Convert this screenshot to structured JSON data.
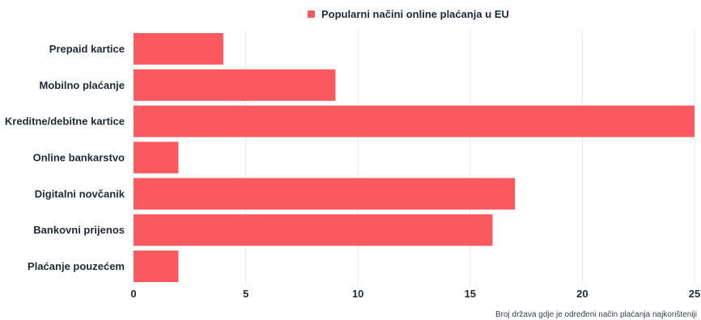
{
  "chart_data": {
    "type": "bar",
    "orientation": "horizontal",
    "categories": [
      "Prepaid kartice",
      "Mobilno plaćanje",
      "Kreditne/debitne kartice",
      "Online bankarstvo",
      "Digitalni novčanik",
      "Bankovni prijenos",
      "Plaćanje pouzećem"
    ],
    "series": [
      {
        "name": "Popularni načini online plaćanja u EU",
        "values": [
          4,
          9,
          25,
          2,
          17,
          16,
          2
        ],
        "color": "#fa5a5f"
      }
    ],
    "xlim": [
      0,
      25
    ],
    "xticks": [
      0,
      5,
      10,
      15,
      20,
      25
    ],
    "xlabel": "Broj država gdje je određeni način plaćanja najkorišteniji",
    "ylabel": "",
    "grid": true,
    "legend_position": "top-center"
  }
}
